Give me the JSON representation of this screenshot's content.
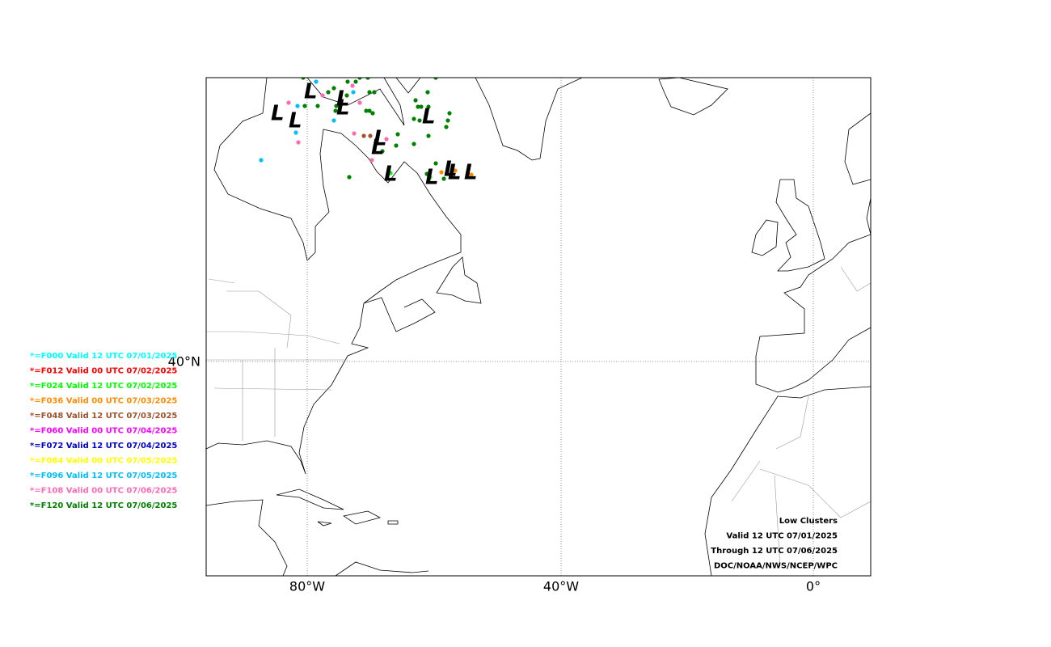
{
  "axes": {
    "x_labels": [
      "80°W",
      "40°W",
      "0°"
    ],
    "y_labels": [
      "40°N"
    ]
  },
  "legend": [
    {
      "label": "*=F000 Valid 12 UTC 07/01/2025",
      "color": "#00ffff"
    },
    {
      "label": "*=F012 Valid 00 UTC 07/02/2025",
      "color": "#ff0000"
    },
    {
      "label": "*=F024 Valid 12 UTC 07/02/2025",
      "color": "#00ff00"
    },
    {
      "label": "*=F036 Valid 00 UTC 07/03/2025",
      "color": "#ff8c00"
    },
    {
      "label": "*=F048 Valid 12 UTC 07/03/2025",
      "color": "#a0522d"
    },
    {
      "label": "*=F060 Valid 00 UTC 07/04/2025",
      "color": "#ff00ff"
    },
    {
      "label": "*=F072 Valid 12 UTC 07/04/2025",
      "color": "#0000cd"
    },
    {
      "label": "*=F084 Valid 00 UTC 07/05/2025",
      "color": "#ffff00"
    },
    {
      "label": "*=F096 Valid 12 UTC 07/05/2025",
      "color": "#00bfff"
    },
    {
      "label": "*=F108 Valid 00 UTC 07/06/2025",
      "color": "#ff69b4"
    },
    {
      "label": "*=F120 Valid 12 UTC 07/06/2025",
      "color": "#008000"
    }
  ],
  "annotation": [
    "Low Clusters",
    "Valid 12 UTC 07/01/2025",
    "Through 12 UTC 07/06/2025",
    "DOC/NOAA/NWS/NCEP/WPC"
  ]
}
